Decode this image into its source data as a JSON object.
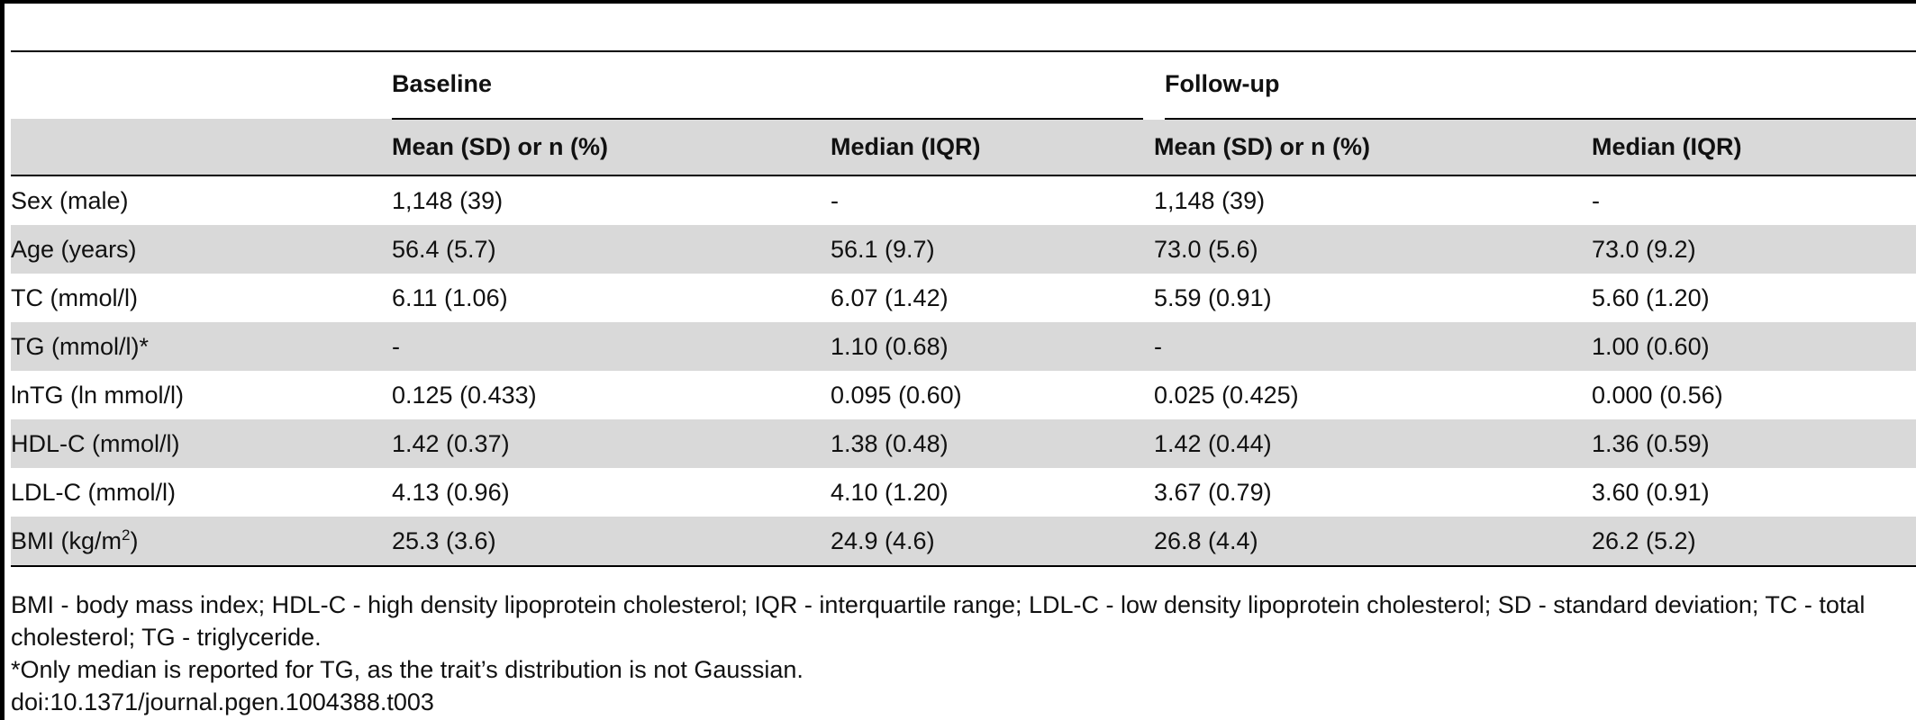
{
  "table": {
    "groups": [
      "Baseline",
      "Follow-up"
    ],
    "subheaders": [
      "Mean (SD) or n (%)",
      "Median (IQR)",
      "Mean (SD) or n (%)",
      "Median (IQR)"
    ],
    "rows": [
      {
        "label": "Sex (male)",
        "cells": [
          "1,148 (39)",
          "-",
          "1,148 (39)",
          "-"
        ]
      },
      {
        "label": "Age (years)",
        "cells": [
          "56.4 (5.7)",
          "56.1 (9.7)",
          "73.0 (5.6)",
          "73.0 (9.2)"
        ]
      },
      {
        "label": "TC (mmol/l)",
        "cells": [
          "6.11 (1.06)",
          "6.07 (1.42)",
          "5.59 (0.91)",
          "5.60 (1.20)"
        ]
      },
      {
        "label": "TG (mmol/l)*",
        "cells": [
          "-",
          "1.10 (0.68)",
          "-",
          "1.00 (0.60)"
        ]
      },
      {
        "label": "lnTG (ln mmol/l)",
        "cells": [
          "0.125 (0.433)",
          "0.095 (0.60)",
          "0.025 (0.425)",
          "0.000 (0.56)"
        ]
      },
      {
        "label": "HDL-C (mmol/l)",
        "cells": [
          "1.42 (0.37)",
          "1.38 (0.48)",
          "1.42 (0.44)",
          "1.36 (0.59)"
        ]
      },
      {
        "label": "LDL-C (mmol/l)",
        "cells": [
          "4.13 (0.96)",
          "4.10 (1.20)",
          "3.67 (0.79)",
          "3.60 (0.91)"
        ]
      },
      {
        "label": "BMI (kg/m",
        "label_sup": "2",
        "label_end": ")",
        "cells": [
          "25.3 (3.6)",
          "24.9 (4.6)",
          "26.8 (4.4)",
          "26.2 (5.2)"
        ]
      }
    ]
  },
  "footnotes": {
    "abbreviations": "BMI - body mass index; HDL-C - high density lipoprotein cholesterol; IQR - interquartile range; LDL-C - low density lipoprotein cholesterol; SD - standard deviation; TC - total cholesterol; TG - triglyceride.",
    "note": "*Only median is reported for TG, as the trait’s distribution is not Gaussian.",
    "doi": "doi:10.1371/journal.pgen.1004388.t003"
  }
}
